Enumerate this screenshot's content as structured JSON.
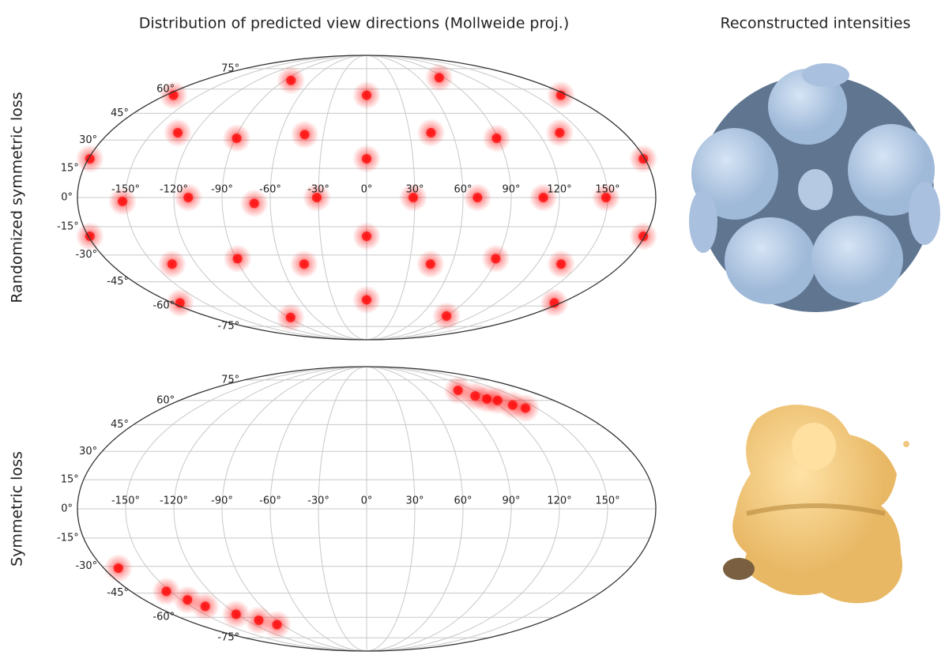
{
  "column_titles": [
    "Distribution of predicted view directions (Mollweide proj.)",
    "Reconstructed intensities"
  ],
  "chart_data": [
    {
      "type": "scatter",
      "ylabel": "Randomized symmetric loss",
      "color": "#ff0000",
      "x": [
        -83,
        84,
        0,
        -173,
        174,
        -132,
        -89,
        -43,
        45,
        89,
        135,
        0,
        -179,
        179,
        -152,
        -111,
        -70,
        -31,
        29,
        69,
        110,
        149,
        0,
        -179,
        179,
        -137,
        -89,
        -44,
        45,
        89,
        137,
        0,
        -173,
        174,
        -88,
        90
      ],
      "y": [
        66,
        68,
        56,
        56,
        56,
        34,
        31,
        33,
        34,
        31,
        34,
        20,
        20,
        20,
        -2,
        0,
        -3,
        0,
        0,
        0,
        0,
        0,
        -20,
        -20,
        -20,
        -35,
        -32,
        -35,
        -35,
        -32,
        -35,
        -56,
        -58,
        -58,
        -68,
        -67
      ],
      "xlim": [
        -180,
        180
      ],
      "ylim": [
        -90,
        90
      ],
      "xticks": [
        {
          "value": -150,
          "label": "-150°"
        },
        {
          "value": -120,
          "label": "-120°"
        },
        {
          "value": -90,
          "label": "-90°"
        },
        {
          "value": -60,
          "label": "-60°"
        },
        {
          "value": -30,
          "label": "-30°"
        },
        {
          "value": 0,
          "label": "0°"
        },
        {
          "value": 30,
          "label": "30°"
        },
        {
          "value": 60,
          "label": "60°"
        },
        {
          "value": 90,
          "label": "90°"
        },
        {
          "value": 120,
          "label": "120°"
        },
        {
          "value": 150,
          "label": "150°"
        }
      ],
      "yticks": [
        {
          "value": 75,
          "label": "75°"
        },
        {
          "value": 60,
          "label": "60°"
        },
        {
          "value": 45,
          "label": "45°"
        },
        {
          "value": 30,
          "label": "30°"
        },
        {
          "value": 15,
          "label": "15°"
        },
        {
          "value": 0,
          "label": "0°"
        },
        {
          "value": -15,
          "label": "-15°"
        },
        {
          "value": -30,
          "label": "-30°"
        },
        {
          "value": -45,
          "label": "-45°"
        },
        {
          "value": -60,
          "label": "-60°"
        },
        {
          "value": -75,
          "label": "-75°"
        }
      ],
      "grid": true
    },
    {
      "type": "scatter",
      "ylabel": "Symmetric loss",
      "color": "#ff0000",
      "x": [
        103,
        111,
        118,
        126,
        133,
        140,
        -170,
        -153,
        -145,
        -138,
        -121,
        -108,
        -96
      ],
      "y": [
        67,
        63,
        61,
        60,
        57,
        55,
        -31,
        -44,
        -49,
        -53,
        -58,
        -62,
        -65
      ],
      "xlim": [
        -180,
        180
      ],
      "ylim": [
        -90,
        90
      ],
      "xticks": [
        {
          "value": -150,
          "label": "-150°"
        },
        {
          "value": -120,
          "label": "-120°"
        },
        {
          "value": -90,
          "label": "-90°"
        },
        {
          "value": -60,
          "label": "-60°"
        },
        {
          "value": -30,
          "label": "-30°"
        },
        {
          "value": 0,
          "label": "0°"
        },
        {
          "value": 30,
          "label": "30°"
        },
        {
          "value": 60,
          "label": "60°"
        },
        {
          "value": 90,
          "label": "90°"
        },
        {
          "value": 120,
          "label": "120°"
        },
        {
          "value": 150,
          "label": "150°"
        }
      ],
      "yticks": [
        {
          "value": 75,
          "label": "75°"
        },
        {
          "value": 60,
          "label": "60°"
        },
        {
          "value": 45,
          "label": "45°"
        },
        {
          "value": 30,
          "label": "30°"
        },
        {
          "value": 15,
          "label": "15°"
        },
        {
          "value": 0,
          "label": "0°"
        },
        {
          "value": -15,
          "label": "-15°"
        },
        {
          "value": -30,
          "label": "-30°"
        },
        {
          "value": -45,
          "label": "-45°"
        },
        {
          "value": -60,
          "label": "-60°"
        },
        {
          "value": -75,
          "label": "-75°"
        }
      ],
      "grid": true
    }
  ]
}
